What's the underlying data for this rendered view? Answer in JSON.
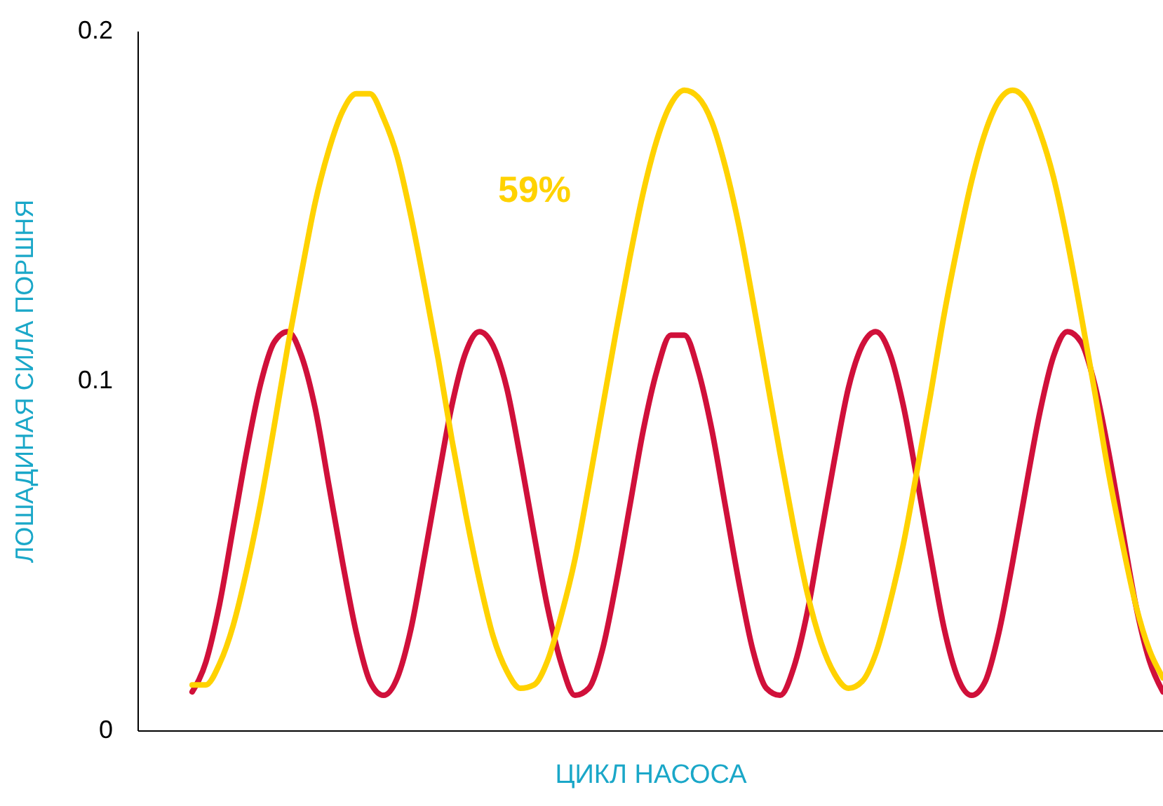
{
  "chart_data": {
    "type": "line",
    "xlabel": "ЦИКЛ НАСОСА",
    "ylabel": "ЛОШАДИНАЯ СИЛА ПОРШНЯ",
    "categories": [
      null,
      null,
      null,
      null,
      null,
      null,
      null,
      null,
      null,
      null,
      null,
      null,
      null,
      null,
      null,
      null,
      null,
      null,
      null,
      null,
      null,
      null,
      null,
      null,
      null,
      null,
      null,
      null,
      null,
      null,
      null,
      null,
      null,
      null,
      null,
      null,
      null,
      null,
      null,
      null,
      null,
      null,
      null,
      null,
      null,
      null,
      null,
      null,
      null,
      null,
      null,
      null,
      null,
      null,
      null,
      null,
      null,
      null,
      null,
      null,
      null,
      null,
      null,
      null,
      null,
      null,
      null,
      null,
      null,
      null,
      null,
      null,
      null,
      null,
      null,
      null
    ],
    "series": [
      {
        "color": "#d0103a",
        "values": [
          null,
          null,
          null,
          null,
          0.011,
          0.0195,
          0.036,
          0.058,
          0.08,
          0.099,
          0.111,
          0.114,
          0.107,
          0.092,
          0.07,
          0.048,
          0.028,
          0.014,
          0.01,
          0.015,
          0.029,
          0.05,
          0.072,
          0.093,
          0.108,
          0.114,
          0.11,
          0.098,
          0.078,
          0.056,
          0.035,
          0.019,
          0.01,
          0.012,
          0.023,
          0.042,
          0.064,
          0.086,
          0.103,
          0.113,
          0.113,
          0.103,
          0.086,
          0.064,
          0.042,
          0.023,
          0.012,
          0.01,
          0.018,
          0.034,
          0.056,
          0.078,
          0.098,
          0.11,
          0.114,
          0.108,
          0.093,
          0.072,
          0.05,
          0.029,
          0.015,
          0.01,
          0.014,
          0.028,
          0.048,
          0.07,
          0.091,
          0.107,
          0.114,
          0.111,
          0.099,
          0.08,
          0.058,
          0.036,
          0.02,
          0.011
        ]
      },
      {
        "color": "#ffd200",
        "values": [
          null,
          null,
          null,
          null,
          0.013,
          0.013,
          0.019,
          0.03,
          0.046,
          0.065,
          0.087,
          0.11,
          0.131,
          0.151,
          0.166,
          0.177,
          0.182,
          0.182,
          0.175,
          0.164,
          0.147,
          0.127,
          0.106,
          0.083,
          0.062,
          0.043,
          0.027,
          0.017,
          0.012,
          0.013,
          0.02,
          0.033,
          0.049,
          0.07,
          0.092,
          0.114,
          0.135,
          0.154,
          0.169,
          0.179,
          0.183,
          0.181,
          0.174,
          0.161,
          0.144,
          0.123,
          0.101,
          0.079,
          0.058,
          0.039,
          0.025,
          0.016,
          0.012,
          0.014,
          0.022,
          0.036,
          0.053,
          0.074,
          0.096,
          0.119,
          0.139,
          0.157,
          0.171,
          0.18,
          0.183,
          0.18,
          0.171,
          0.158,
          0.14,
          0.119,
          0.097,
          0.074,
          0.054,
          0.036,
          0.023,
          0.015
        ]
      }
    ],
    "ylim": [
      0,
      0.2
    ],
    "yticks": [
      0,
      0.1,
      0.2
    ],
    "tick_labels": "y",
    "grid": false,
    "line_style": "solid",
    "marker": "none",
    "annotations": [
      "59%"
    ]
  }
}
